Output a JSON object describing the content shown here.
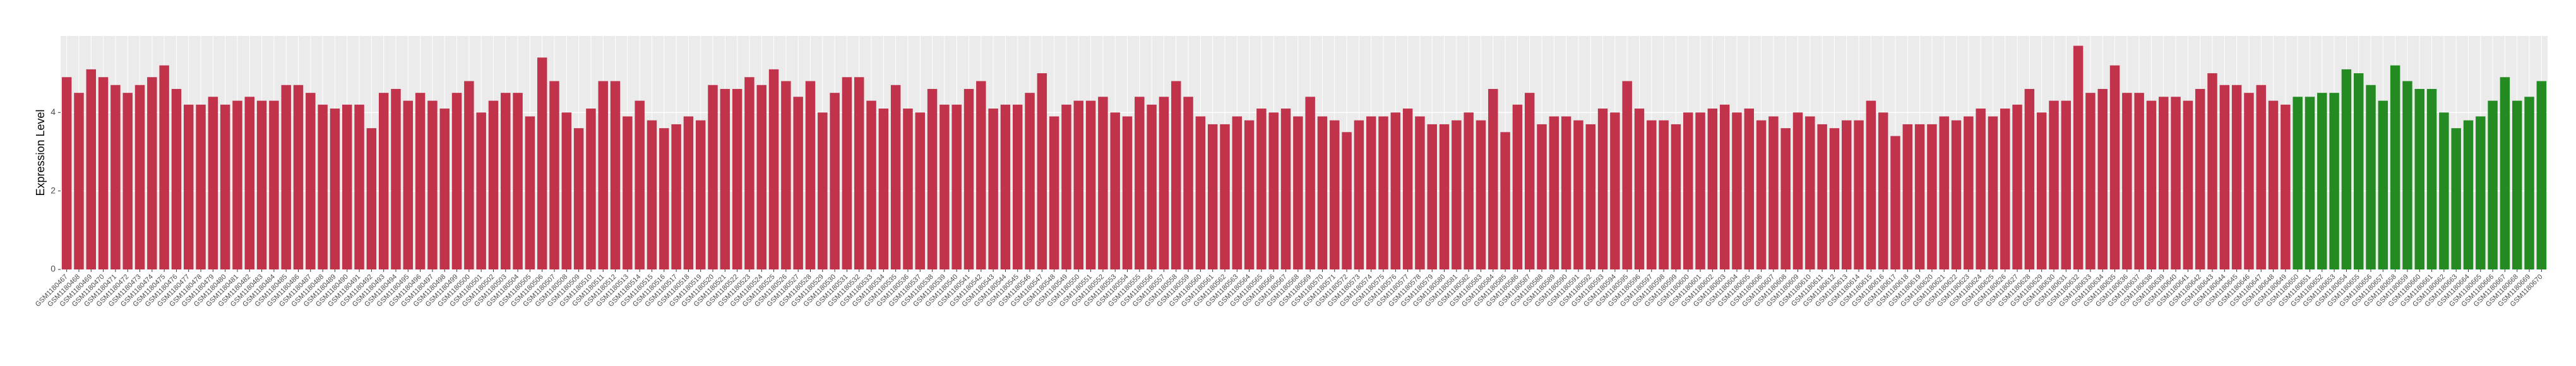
{
  "chart_data": {
    "type": "bar",
    "y_label": "Expression Level",
    "ylim": [
      0,
      5.95
    ],
    "yticks": [
      0,
      2,
      4
    ],
    "grid": true,
    "groups": [
      {
        "color": "#c0334a",
        "categories": [
          "GSM1180467",
          "GSM1180468",
          "GSM1180469",
          "GSM1180470",
          "GSM1180471",
          "GSM1180472",
          "GSM1180473",
          "GSM1180474",
          "GSM1180475",
          "GSM1180476",
          "GSM1180477",
          "GSM1180478",
          "GSM1180479",
          "GSM1180480",
          "GSM1180481",
          "GSM1180482",
          "GSM1180483",
          "GSM1180484",
          "GSM1180485",
          "GSM1180486",
          "GSM1180487",
          "GSM1180488",
          "GSM1180489",
          "GSM1180490",
          "GSM1180491",
          "GSM1180492",
          "GSM1180493",
          "GSM1180494",
          "GSM1180495",
          "GSM1180496",
          "GSM1180497",
          "GSM1180498",
          "GSM1180499",
          "GSM1180500",
          "GSM1180501",
          "GSM1180502",
          "GSM1180503",
          "GSM1180504",
          "GSM1180505",
          "GSM1180506",
          "GSM1180507",
          "GSM1180508",
          "GSM1180509",
          "GSM1180510",
          "GSM1180511",
          "GSM1180512",
          "GSM1180513",
          "GSM1180514",
          "GSM1180515",
          "GSM1180516",
          "GSM1180517",
          "GSM1180518",
          "GSM1180519",
          "GSM1180520",
          "GSM1180521",
          "GSM1180522",
          "GSM1180523",
          "GSM1180524",
          "GSM1180525",
          "GSM1180526",
          "GSM1180527",
          "GSM1180528",
          "GSM1180529",
          "GSM1180530",
          "GSM1180531",
          "GSM1180532",
          "GSM1180533",
          "GSM1180534",
          "GSM1180535",
          "GSM1180536",
          "GSM1180537",
          "GSM1180538",
          "GSM1180539",
          "GSM1180540",
          "GSM1180541",
          "GSM1180542",
          "GSM1180543",
          "GSM1180544",
          "GSM1180545",
          "GSM1180546",
          "GSM1180547",
          "GSM1180548",
          "GSM1180549",
          "GSM1180550",
          "GSM1180551",
          "GSM1180552",
          "GSM1180553",
          "GSM1180554",
          "GSM1180555",
          "GSM1180556",
          "GSM1180557",
          "GSM1180558",
          "GSM1180559",
          "GSM1180560",
          "GSM1180561",
          "GSM1180562",
          "GSM1180563",
          "GSM1180564",
          "GSM1180565",
          "GSM1180566",
          "GSM1180567",
          "GSM1180568",
          "GSM1180569",
          "GSM1180570",
          "GSM1180571",
          "GSM1180572",
          "GSM1180573",
          "GSM1180574",
          "GSM1180575",
          "GSM1180576",
          "GSM1180577",
          "GSM1180578",
          "GSM1180579",
          "GSM1180580",
          "GSM1180581",
          "GSM1180582",
          "GSM1180583",
          "GSM1180584",
          "GSM1180585",
          "GSM1180586",
          "GSM1180587",
          "GSM1180588",
          "GSM1180589",
          "GSM1180590",
          "GSM1180591",
          "GSM1180592",
          "GSM1180593",
          "GSM1180594",
          "GSM1180595",
          "GSM1180596",
          "GSM1180597",
          "GSM1180598",
          "GSM1180599",
          "GSM1180600",
          "GSM1180601",
          "GSM1180602",
          "GSM1180603",
          "GSM1180604",
          "GSM1180605",
          "GSM1180606",
          "GSM1180607",
          "GSM1180608",
          "GSM1180609",
          "GSM1180610",
          "GSM1180611",
          "GSM1180612",
          "GSM1180613",
          "GSM1180614",
          "GSM1180615",
          "GSM1180616",
          "GSM1180617",
          "GSM1180618",
          "GSM1180619",
          "GSM1180620",
          "GSM1180621",
          "GSM1180622",
          "GSM1180623",
          "GSM1180624",
          "GSM1180625",
          "GSM1180626",
          "GSM1180627",
          "GSM1180628",
          "GSM1180629",
          "GSM1180630",
          "GSM1180631",
          "GSM1180632",
          "GSM1180633",
          "GSM1180634",
          "GSM1180635",
          "GSM1180636",
          "GSM1180637",
          "GSM1180638",
          "GSM1180639",
          "GSM1180640",
          "GSM1180641",
          "GSM1180642",
          "GSM1180643",
          "GSM1180644",
          "GSM1180645",
          "GSM1180646",
          "GSM1180647",
          "GSM1180648",
          "GSM1180649"
        ],
        "values": [
          4.9,
          4.5,
          5.1,
          4.9,
          4.7,
          4.5,
          4.7,
          4.9,
          5.2,
          4.6,
          4.2,
          4.2,
          4.4,
          4.2,
          4.3,
          4.4,
          4.3,
          4.3,
          4.7,
          4.7,
          4.5,
          4.2,
          4.1,
          4.2,
          4.2,
          3.6,
          4.5,
          4.6,
          4.3,
          4.5,
          4.3,
          4.1,
          4.5,
          4.8,
          4.0,
          4.3,
          4.5,
          4.5,
          3.9,
          5.4,
          4.8,
          4.0,
          3.6,
          4.1,
          4.8,
          4.8,
          3.9,
          4.3,
          3.8,
          3.6,
          3.7,
          3.9,
          3.8,
          4.7,
          4.6,
          4.6,
          4.9,
          4.7,
          5.1,
          4.8,
          4.4,
          4.8,
          4.0,
          4.5,
          4.9,
          4.9,
          4.3,
          4.1,
          4.7,
          4.1,
          4.0,
          4.6,
          4.2,
          4.2,
          4.6,
          4.8,
          4.1,
          4.2,
          4.2,
          4.5,
          5.0,
          3.9,
          4.2,
          4.3,
          4.3,
          4.4,
          4.0,
          3.9,
          4.4,
          4.2,
          4.4,
          4.8,
          4.4,
          3.9,
          3.7,
          3.7,
          3.9,
          3.8,
          4.1,
          4.0,
          4.1,
          3.9,
          4.4,
          3.9,
          3.8,
          3.5,
          3.8,
          3.9,
          3.9,
          4.0,
          4.1,
          3.9,
          3.7,
          3.7,
          3.8,
          4.0,
          3.8,
          4.6,
          3.5,
          4.2,
          4.5,
          3.7,
          3.9,
          3.9,
          3.8,
          3.7,
          4.1,
          4.0,
          4.8,
          4.1,
          3.8,
          3.8,
          3.7,
          4.0,
          4.0,
          4.1,
          4.2,
          4.0,
          4.1,
          3.8,
          3.9,
          3.6,
          4.0,
          3.9,
          3.7,
          3.6,
          3.8,
          3.8,
          4.3,
          4.0,
          3.4,
          3.7,
          3.7,
          3.7,
          3.9,
          3.8,
          3.9,
          4.1,
          3.9,
          4.1,
          4.2,
          4.6,
          4.0,
          4.3,
          4.3,
          5.7,
          4.5,
          4.6,
          5.2,
          4.5,
          4.5,
          4.3,
          4.4,
          4.4,
          4.3,
          4.6,
          5.0,
          4.7,
          4.7,
          4.5,
          4.7,
          4.3,
          4.2
        ]
      },
      {
        "color": "#238b22",
        "categories": [
          "GSM1180650",
          "GSM1180651",
          "GSM1180652",
          "GSM1180653",
          "GSM1180654",
          "GSM1180655",
          "GSM1180656",
          "GSM1180657",
          "GSM1180658",
          "GSM1180659",
          "GSM1180660",
          "GSM1180661",
          "GSM1180662",
          "GSM1180663",
          "GSM1180664",
          "GSM1180665",
          "GSM1180666",
          "GSM1180667",
          "GSM1180668",
          "GSM1180669",
          "GSM1180670"
        ],
        "values": [
          4.4,
          4.4,
          4.5,
          4.5,
          5.1,
          5.0,
          4.7,
          4.3,
          5.2,
          4.8,
          4.6,
          4.6,
          4.0,
          3.6,
          3.8,
          3.9,
          4.3,
          4.9,
          4.3,
          4.4,
          4.8
        ]
      }
    ]
  }
}
